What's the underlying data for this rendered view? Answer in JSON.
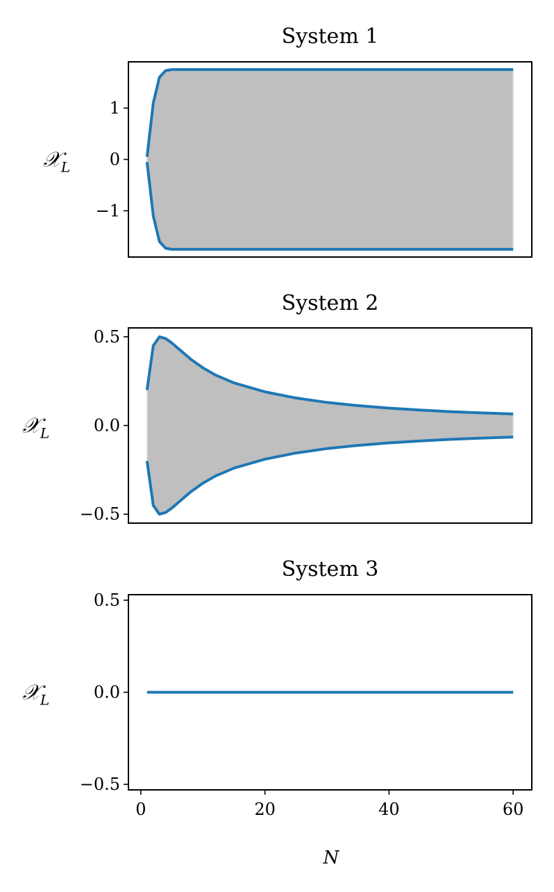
{
  "chart_data": [
    {
      "type": "line",
      "title": "System 1",
      "ylabel": "𝒳",
      "ylabel_subscript": "L",
      "xlabel": "",
      "xlim": [
        -2,
        63
      ],
      "ylim": [
        -1.9,
        1.9
      ],
      "yticks": [
        1,
        0,
        -1
      ],
      "ytick_labels": [
        "1",
        "0",
        "−1"
      ],
      "xticks": [],
      "xtick_labels": [],
      "band_fill": true,
      "series": [
        {
          "x": [
            1,
            2,
            3,
            4,
            5,
            6,
            8,
            10,
            15,
            20,
            30,
            40,
            50,
            60
          ],
          "values": [
            0.05,
            1.1,
            1.6,
            1.73,
            1.75,
            1.75,
            1.75,
            1.75,
            1.75,
            1.75,
            1.75,
            1.75,
            1.75,
            1.75
          ]
        },
        {
          "x": [
            1,
            2,
            3,
            4,
            5,
            6,
            8,
            10,
            15,
            20,
            30,
            40,
            50,
            60
          ],
          "values": [
            -0.05,
            -1.1,
            -1.6,
            -1.73,
            -1.75,
            -1.75,
            -1.75,
            -1.75,
            -1.75,
            -1.75,
            -1.75,
            -1.75,
            -1.75,
            -1.75
          ]
        }
      ]
    },
    {
      "type": "line",
      "title": "System 2",
      "ylabel": "𝒳",
      "ylabel_subscript": "L",
      "xlabel": "",
      "xlim": [
        -2,
        63
      ],
      "ylim": [
        -0.55,
        0.55
      ],
      "yticks": [
        0.5,
        0.0,
        -0.5
      ],
      "ytick_labels": [
        "0.5",
        "0.0",
        "−0.5"
      ],
      "xticks": [],
      "xtick_labels": [],
      "band_fill": true,
      "series": [
        {
          "x": [
            1,
            2,
            3,
            4,
            5,
            6,
            8,
            10,
            12,
            15,
            20,
            25,
            30,
            35,
            40,
            45,
            50,
            55,
            60
          ],
          "values": [
            0.2,
            0.45,
            0.5,
            0.49,
            0.465,
            0.435,
            0.375,
            0.325,
            0.285,
            0.24,
            0.19,
            0.155,
            0.13,
            0.112,
            0.098,
            0.087,
            0.078,
            0.071,
            0.065
          ]
        },
        {
          "x": [
            1,
            2,
            3,
            4,
            5,
            6,
            8,
            10,
            12,
            15,
            20,
            25,
            30,
            35,
            40,
            45,
            50,
            55,
            60
          ],
          "values": [
            -0.2,
            -0.45,
            -0.5,
            -0.49,
            -0.465,
            -0.435,
            -0.375,
            -0.325,
            -0.285,
            -0.24,
            -0.19,
            -0.155,
            -0.13,
            -0.112,
            -0.098,
            -0.087,
            -0.078,
            -0.071,
            -0.065
          ]
        }
      ]
    },
    {
      "type": "line",
      "title": "System 3",
      "ylabel": "𝒳",
      "ylabel_subscript": "L",
      "xlabel": "N",
      "xlim": [
        -2,
        63
      ],
      "ylim": [
        -0.53,
        0.53
      ],
      "yticks": [
        0.5,
        0.0,
        -0.5
      ],
      "ytick_labels": [
        "0.5",
        "0.0",
        "−0.5"
      ],
      "xticks": [
        0,
        20,
        40,
        60
      ],
      "xtick_labels": [
        "0",
        "20",
        "40",
        "60"
      ],
      "band_fill": false,
      "series": [
        {
          "x": [
            1,
            60
          ],
          "values": [
            0,
            0
          ]
        }
      ]
    }
  ],
  "colors": {
    "series": "#1f77b4",
    "band": "#bfbfbf"
  }
}
